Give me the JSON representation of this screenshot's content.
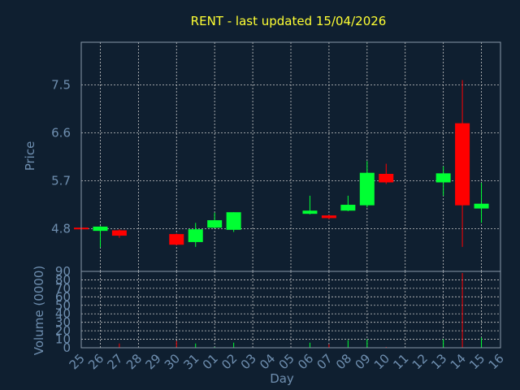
{
  "title": "RENT - last updated 15/04/2026",
  "colors": {
    "background": "#0f1f30",
    "plot_border": "#8a9aaa",
    "grid": "#c8c8c8",
    "title": "#ffff33",
    "axis_text": "#6f8fb0",
    "up": "#00ff33",
    "down": "#ff0000"
  },
  "chart_data": [
    {
      "type": "candlestick",
      "ylabel": "Price",
      "yticks": [
        "7.5",
        "6.6",
        "5.7",
        "4.8"
      ],
      "ylim": [
        4.0,
        8.3
      ],
      "x": [
        "25",
        "26",
        "27",
        "28",
        "29",
        "30",
        "31",
        "01",
        "02",
        "03",
        "04",
        "05",
        "06",
        "07",
        "08",
        "09",
        "10",
        "11",
        "12",
        "13",
        "14",
        "15",
        "16"
      ],
      "candles": [
        {
          "day": "25",
          "open": 4.82,
          "close": 4.8,
          "high": 4.83,
          "low": 4.79
        },
        {
          "day": "26",
          "open": 4.76,
          "close": 4.84,
          "high": 4.85,
          "low": 4.45
        },
        {
          "day": "27",
          "open": 4.77,
          "close": 4.67,
          "high": 4.79,
          "low": 4.63
        },
        {
          "day": "30",
          "open": 4.7,
          "close": 4.5,
          "high": 4.71,
          "low": 4.49
        },
        {
          "day": "31",
          "open": 4.55,
          "close": 4.79,
          "high": 4.91,
          "low": 4.46
        },
        {
          "day": "01",
          "open": 4.82,
          "close": 4.96,
          "high": 5.1,
          "low": 4.81
        },
        {
          "day": "02",
          "open": 4.78,
          "close": 5.11,
          "high": 5.11,
          "low": 4.74
        },
        {
          "day": "06",
          "open": 5.08,
          "close": 5.14,
          "high": 5.42,
          "low": 5.07
        },
        {
          "day": "07",
          "open": 5.05,
          "close": 5.0,
          "high": 5.06,
          "low": 4.98
        },
        {
          "day": "08",
          "open": 5.14,
          "close": 5.25,
          "high": 5.42,
          "low": 5.13
        },
        {
          "day": "09",
          "open": 5.24,
          "close": 5.85,
          "high": 6.07,
          "low": 5.2
        },
        {
          "day": "10",
          "open": 5.83,
          "close": 5.67,
          "high": 6.02,
          "low": 5.64
        },
        {
          "day": "13",
          "open": 5.67,
          "close": 5.84,
          "high": 5.97,
          "low": 5.42
        },
        {
          "day": "14",
          "open": 6.78,
          "close": 5.24,
          "high": 7.59,
          "low": 4.46
        },
        {
          "day": "15",
          "open": 5.18,
          "close": 5.27,
          "high": 5.66,
          "low": 4.91
        }
      ]
    },
    {
      "type": "bar",
      "ylabel": "Volume (0000)",
      "xlabel": "Day",
      "yticks": [
        "0",
        "10",
        "20",
        "30",
        "40",
        "50",
        "60",
        "70",
        "80",
        "90"
      ],
      "ylim": [
        0,
        90
      ],
      "bars": [
        {
          "day": "25",
          "value": 0.3,
          "direction": "down"
        },
        {
          "day": "26",
          "value": 0.5,
          "direction": "up"
        },
        {
          "day": "27",
          "value": 5,
          "direction": "down"
        },
        {
          "day": "30",
          "value": 8,
          "direction": "down"
        },
        {
          "day": "31",
          "value": 5,
          "direction": "up"
        },
        {
          "day": "01",
          "value": 1,
          "direction": "up"
        },
        {
          "day": "02",
          "value": 6,
          "direction": "up"
        },
        {
          "day": "06",
          "value": 6,
          "direction": "up"
        },
        {
          "day": "07",
          "value": 4,
          "direction": "down"
        },
        {
          "day": "08",
          "value": 9,
          "direction": "up"
        },
        {
          "day": "09",
          "value": 10,
          "direction": "up"
        },
        {
          "day": "10",
          "value": 1,
          "direction": "down"
        },
        {
          "day": "13",
          "value": 10,
          "direction": "up"
        },
        {
          "day": "14",
          "value": 88,
          "direction": "down"
        },
        {
          "day": "15",
          "value": 12,
          "direction": "up"
        }
      ]
    }
  ]
}
